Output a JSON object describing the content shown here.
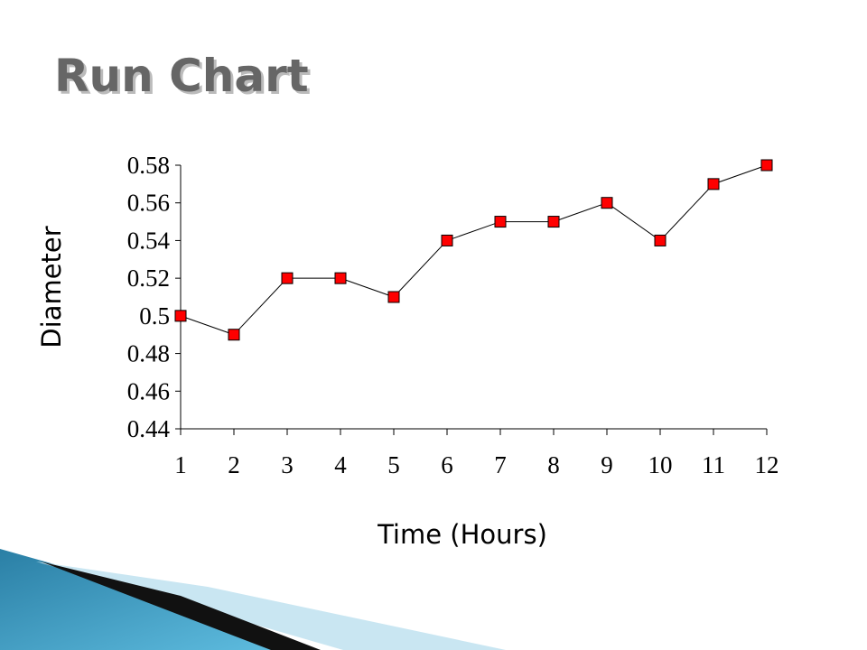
{
  "chart_data": {
    "type": "line",
    "title": "Run Chart",
    "x_label": "Time (Hours)",
    "y_label": "Diameter",
    "x": [
      1,
      2,
      3,
      4,
      5,
      6,
      7,
      8,
      9,
      10,
      11,
      12
    ],
    "values": [
      0.5,
      0.49,
      0.52,
      0.52,
      0.51,
      0.54,
      0.55,
      0.55,
      0.56,
      0.54,
      0.57,
      0.58
    ],
    "line_color": "#000000",
    "marker_color": "#ff0000",
    "xlim": [
      1,
      12
    ],
    "xticks": [
      1,
      2,
      3,
      4,
      5,
      6,
      7,
      8,
      9,
      10,
      11,
      12
    ],
    "ylim": [
      0.44,
      0.58
    ],
    "yticks": [
      0.44,
      0.46,
      0.48,
      0.5,
      0.52,
      0.54,
      0.56,
      0.58
    ]
  }
}
